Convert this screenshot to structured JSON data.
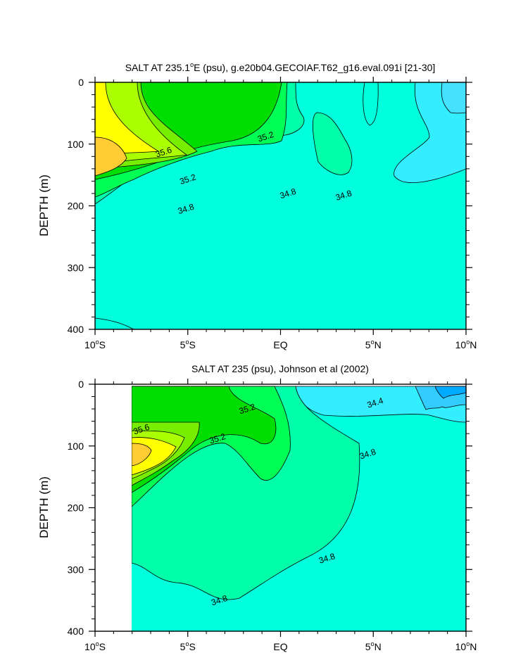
{
  "chart_data": [
    {
      "type": "contour",
      "title_prefix": "SALT AT 235.1",
      "title_sup": "o",
      "title_suffix": "E (psu), g.e20b04.GECOIAF.T62_g16.eval.091i [21-30]",
      "xlabel": "",
      "ylabel": "DEPTH (m)",
      "xlim": [
        -10,
        10
      ],
      "ylim": [
        0,
        400
      ],
      "y_reversed": true,
      "x_ticks": [
        {
          "value": -10,
          "num": "10",
          "sup": "o",
          "hem": "S"
        },
        {
          "value": -5,
          "num": "5",
          "sup": "o",
          "hem": "S"
        },
        {
          "value": 0,
          "num": "EQ",
          "sup": "",
          "hem": ""
        },
        {
          "value": 5,
          "num": "5",
          "sup": "o",
          "hem": "N"
        },
        {
          "value": 10,
          "num": "10",
          "sup": "o",
          "hem": "N"
        }
      ],
      "y_ticks": [
        0,
        100,
        200,
        300,
        400
      ],
      "data_start_x": -10,
      "contour_labels": [
        {
          "text": "35.2",
          "x": -0.8,
          "y": 88
        },
        {
          "text": "35.6",
          "x": -6.3,
          "y": 113
        },
        {
          "text": "35.2",
          "x": -5.0,
          "y": 157
        },
        {
          "text": "34.8",
          "x": 0.4,
          "y": 180
        },
        {
          "text": "34.8",
          "x": 3.4,
          "y": 183
        },
        {
          "text": "34.8",
          "x": -5.1,
          "y": 205
        }
      ]
    },
    {
      "type": "contour",
      "title_prefix": "SALT AT 235 (psu), Johnson et al (2002)",
      "title_sup": "",
      "title_suffix": "",
      "xlabel": "",
      "ylabel": "DEPTH (m)",
      "xlim": [
        -10,
        10
      ],
      "ylim": [
        0,
        400
      ],
      "y_reversed": true,
      "x_ticks": [
        {
          "value": -10,
          "num": "10",
          "sup": "o",
          "hem": "S"
        },
        {
          "value": -5,
          "num": "5",
          "sup": "o",
          "hem": "S"
        },
        {
          "value": 0,
          "num": "EQ",
          "sup": "",
          "hem": ""
        },
        {
          "value": 5,
          "num": "5",
          "sup": "o",
          "hem": "N"
        },
        {
          "value": 10,
          "num": "10",
          "sup": "o",
          "hem": "N"
        }
      ],
      "y_ticks": [
        0,
        100,
        200,
        300,
        400
      ],
      "data_start_x": -8,
      "contour_labels": [
        {
          "text": "35.2",
          "x": -1.8,
          "y": 40
        },
        {
          "text": "34.4",
          "x": 5.1,
          "y": 30
        },
        {
          "text": "35.6",
          "x": -7.5,
          "y": 73
        },
        {
          "text": "35.2",
          "x": -3.4,
          "y": 88
        },
        {
          "text": "34.8",
          "x": 4.7,
          "y": 113
        },
        {
          "text": "34.8",
          "x": 2.5,
          "y": 282
        },
        {
          "text": "34.8",
          "x": -3.3,
          "y": 350
        }
      ]
    }
  ]
}
